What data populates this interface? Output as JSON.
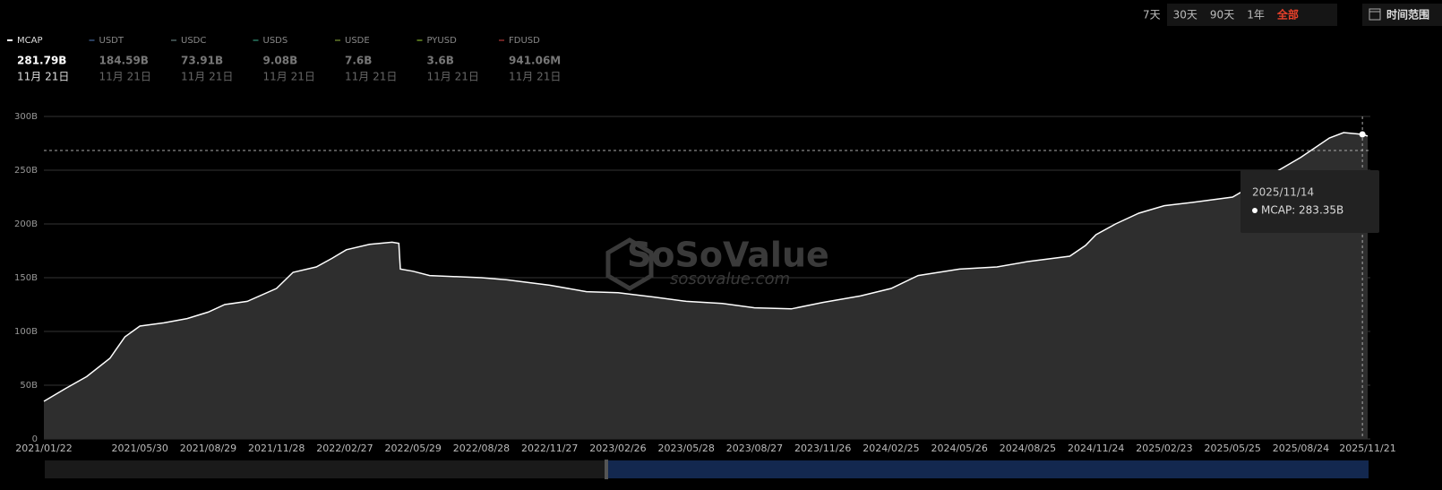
{
  "chart_data": {
    "type": "area",
    "range_buttons": [
      "7天",
      "30天",
      "90天",
      "1年",
      "全部"
    ],
    "active_range": "全部",
    "range_picker": "时间范围",
    "watermark": {
      "brand": "SoSoValue",
      "site": "sosovalue.com"
    },
    "legend": [
      {
        "name": "MCAP",
        "color": "#ffffff",
        "value": "281.79B",
        "date": "11月 21日"
      },
      {
        "name": "USDT",
        "color": "#2a3f5f",
        "value": "184.59B",
        "date": "11月 21日"
      },
      {
        "name": "USDC",
        "color": "#3b4a4a",
        "value": "73.91B",
        "date": "11月 21日"
      },
      {
        "name": "USDS",
        "color": "#1f5a4a",
        "value": "9.08B",
        "date": "11月 21日"
      },
      {
        "name": "USDE",
        "color": "#4a5a1f",
        "value": "7.6B",
        "date": "11月 21日"
      },
      {
        "name": "PYUSD",
        "color": "#4f6a1a",
        "value": "3.6B",
        "date": "11月 21日"
      },
      {
        "name": "FDUSD",
        "color": "#6a2222",
        "value": "941.06M",
        "date": "11月 21日"
      }
    ],
    "series": [
      {
        "name": "MCAP",
        "color": "#ffffff",
        "fill": "#2e2e2e",
        "x": [
          "2021/01/22",
          "2021/02/20",
          "2021/03/20",
          "2021/04/20",
          "2021/05/10",
          "2021/05/30",
          "2021/07/01",
          "2021/08/01",
          "2021/08/29",
          "2021/09/20",
          "2021/10/20",
          "2021/11/28",
          "2021/12/20",
          "2022/01/20",
          "2022/02/10",
          "2022/03/01",
          "2022/04/01",
          "2022/05/01",
          "2022/05/10",
          "2022/05/12",
          "2022/05/29",
          "2022/06/20",
          "2022/08/28",
          "2022/10/01",
          "2022/11/27",
          "2023/01/15",
          "2023/02/26",
          "2023/04/15",
          "2023/05/28",
          "2023/07/15",
          "2023/08/27",
          "2023/10/15",
          "2023/11/26",
          "2024/01/15",
          "2024/02/25",
          "2024/04/01",
          "2024/05/26",
          "2024/07/15",
          "2024/08/25",
          "2024/10/20",
          "2024/11/10",
          "2024/11/24",
          "2024/12/20",
          "2025/01/20",
          "2025/02/23",
          "2025/04/01",
          "2025/05/25",
          "2025/07/01",
          "2025/08/24",
          "2025/10/01",
          "2025/10/20",
          "2025/11/14",
          "2025/11/21"
        ],
        "values": [
          35,
          47,
          58,
          75,
          95,
          105,
          108,
          112,
          118,
          125,
          128,
          140,
          155,
          160,
          168,
          176,
          181,
          183,
          182,
          158,
          156,
          152,
          150,
          148,
          143,
          137,
          136,
          132,
          128,
          126,
          122,
          121,
          127,
          133,
          140,
          152,
          158,
          160,
          165,
          170,
          180,
          190,
          200,
          210,
          217,
          220,
          225,
          240,
          262,
          280,
          285,
          283.35,
          281.79
        ]
      }
    ],
    "tooltip": {
      "x": "2025/11/14",
      "value": 283.35,
      "label": "MCAP: 283.35B"
    },
    "xlim": [
      "2021/01/22",
      "2025/11/21"
    ],
    "xticks": [
      "2021/01/22",
      "2021/05/30",
      "2021/08/29",
      "2021/11/28",
      "2022/02/27",
      "2022/05/29",
      "2022/08/28",
      "2022/11/27",
      "2023/02/26",
      "2023/05/28",
      "2023/08/27",
      "2023/11/26",
      "2024/02/25",
      "2024/05/26",
      "2024/08/25",
      "2024/11/24",
      "2025/02/23",
      "2025/05/25",
      "2025/08/24",
      "2025/11/21"
    ],
    "ylim": [
      0,
      300
    ],
    "yticks": [
      0,
      {
        "value": 50,
        "label": "50B"
      },
      {
        "value": 100,
        "label": "100B"
      },
      {
        "value": 150,
        "label": "150B"
      },
      {
        "value": 200,
        "label": "200B"
      },
      {
        "value": 250,
        "label": "250B"
      },
      {
        "value": 300,
        "label": "300B"
      }
    ],
    "grid": true
  }
}
